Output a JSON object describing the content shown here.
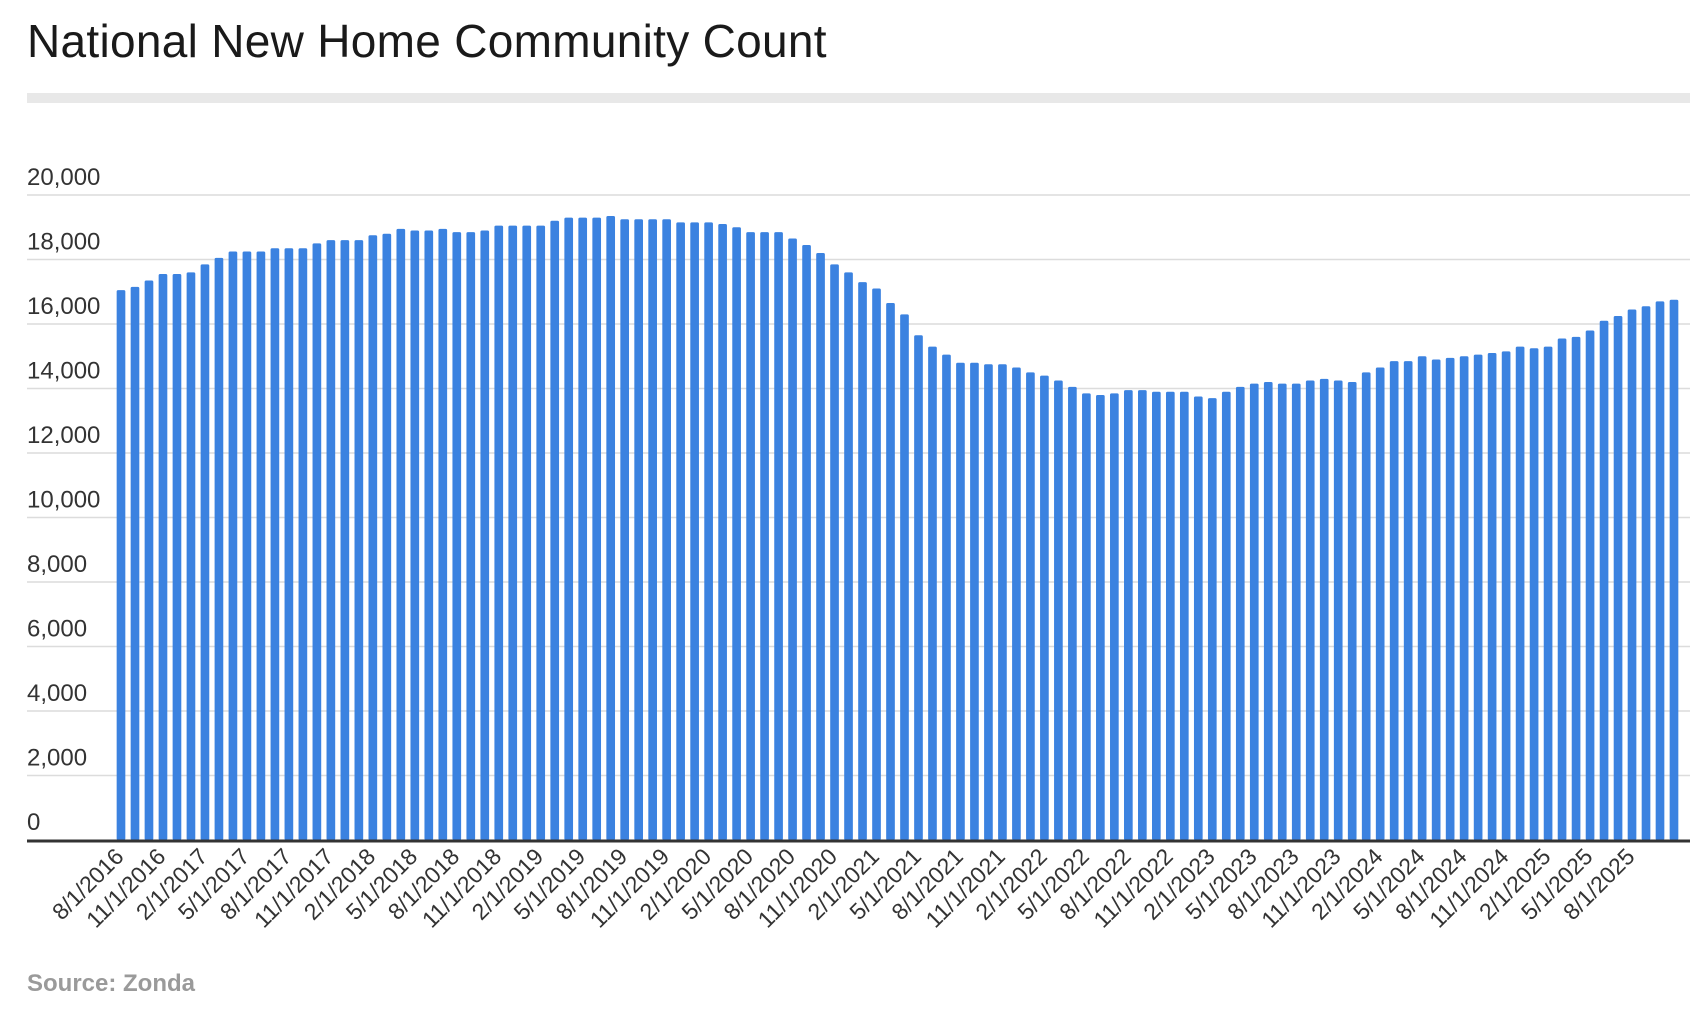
{
  "title": "National New Home Community Count",
  "source": "Source: Zonda",
  "colors": {
    "bar": "#3b82e0",
    "grid": "#dcdcdc",
    "axis": "#333333",
    "tick_text": "#333333"
  },
  "chart_data": {
    "type": "bar",
    "title": "National New Home Community Count",
    "xlabel": "",
    "ylabel": "",
    "ylim": [
      0,
      20000
    ],
    "yticks": [
      0,
      2000,
      4000,
      6000,
      8000,
      10000,
      12000,
      14000,
      16000,
      18000,
      20000
    ],
    "ytick_labels": [
      "0",
      "2,000",
      "4,000",
      "6,000",
      "8,000",
      "10,000",
      "12,000",
      "14,000",
      "16,000",
      "18,000",
      "20,000"
    ],
    "grid": true,
    "legend": "none",
    "start_month": "8/1/2016",
    "xtick_labels": [
      "8/1/2016",
      "11/1/2016",
      "2/1/2017",
      "5/1/2017",
      "8/1/2017",
      "11/1/2017",
      "2/1/2018",
      "5/1/2018",
      "8/1/2018",
      "11/1/2018",
      "2/1/2019",
      "5/1/2019",
      "8/1/2019",
      "11/1/2019",
      "2/1/2020",
      "5/1/2020",
      "8/1/2020",
      "11/1/2020",
      "2/1/2021",
      "5/1/2021",
      "8/1/2021",
      "11/1/2021",
      "2/1/2022",
      "5/1/2022",
      "8/1/2022",
      "11/1/2022",
      "2/1/2023",
      "5/1/2023",
      "8/1/2023",
      "11/1/2023",
      "2/1/2024",
      "5/1/2024",
      "8/1/2024",
      "11/1/2024",
      "2/1/2025",
      "5/1/2025",
      "8/1/2025"
    ],
    "values": [
      17050,
      17150,
      17350,
      17550,
      17550,
      17600,
      17850,
      18050,
      18250,
      18250,
      18250,
      18350,
      18350,
      18350,
      18500,
      18600,
      18600,
      18600,
      18750,
      18800,
      18950,
      18900,
      18900,
      18950,
      18850,
      18850,
      18900,
      19050,
      19050,
      19050,
      19050,
      19200,
      19300,
      19300,
      19300,
      19350,
      19250,
      19250,
      19250,
      19250,
      19150,
      19150,
      19150,
      19100,
      19000,
      18850,
      18850,
      18850,
      18650,
      18450,
      18200,
      17850,
      17600,
      17300,
      17100,
      16650,
      16300,
      15650,
      15300,
      15050,
      14800,
      14800,
      14750,
      14750,
      14650,
      14500,
      14400,
      14250,
      14050,
      13850,
      13800,
      13850,
      13950,
      13950,
      13900,
      13900,
      13900,
      13750,
      13700,
      13900,
      14050,
      14150,
      14200,
      14150,
      14150,
      14250,
      14300,
      14250,
      14200,
      14500,
      14650,
      14850,
      14850,
      15000,
      14900,
      14950,
      15000,
      15050,
      15100,
      15150,
      15300,
      15250,
      15300,
      15550,
      15600,
      15800,
      16100,
      16250,
      16450,
      16550,
      16700,
      16750
    ]
  }
}
